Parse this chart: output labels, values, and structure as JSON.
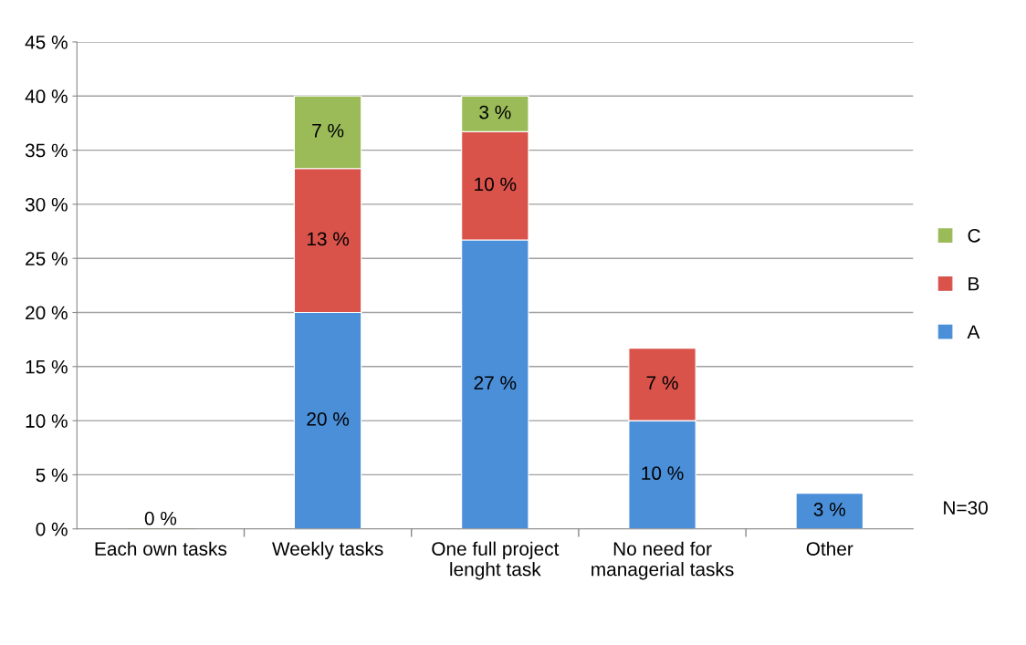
{
  "chart_data": {
    "type": "bar",
    "stacked": true,
    "categories": [
      "Each own tasks",
      "Weekly tasks",
      "One full project lenght task",
      "No need for managerial tasks",
      "Other"
    ],
    "series": [
      {
        "name": "A",
        "color": "#4a8fd8",
        "values": [
          0,
          20,
          26.7,
          10,
          3.3
        ],
        "value_labels": [
          "0 %",
          "20 %",
          "27 %",
          "10 %",
          "3 %"
        ]
      },
      {
        "name": "B",
        "color": "#d9534b",
        "values": [
          0,
          13.3,
          10,
          6.7,
          null
        ],
        "value_labels": [
          null,
          "13 %",
          "10 %",
          "7 %",
          null
        ]
      },
      {
        "name": "C",
        "color": "#9bbb59",
        "values": [
          0,
          6.7,
          3.3,
          null,
          null
        ],
        "value_labels": [
          null,
          "7 %",
          "3 %",
          null,
          null
        ]
      }
    ],
    "ylim": [
      0,
      45
    ],
    "yticks": [
      {
        "value": 0,
        "label": "0 %"
      },
      {
        "value": 5,
        "label": "5 %"
      },
      {
        "value": 10,
        "label": "10 %"
      },
      {
        "value": 15,
        "label": "15 %"
      },
      {
        "value": 20,
        "label": "20 %"
      },
      {
        "value": 25,
        "label": "25 %"
      },
      {
        "value": 30,
        "label": "30 %"
      },
      {
        "value": 35,
        "label": "35 %"
      },
      {
        "value": 40,
        "label": "40 %"
      },
      {
        "value": 45,
        "label": "45 %"
      }
    ],
    "grid": "y",
    "legend": "right",
    "annotations": [
      "N=30"
    ]
  }
}
